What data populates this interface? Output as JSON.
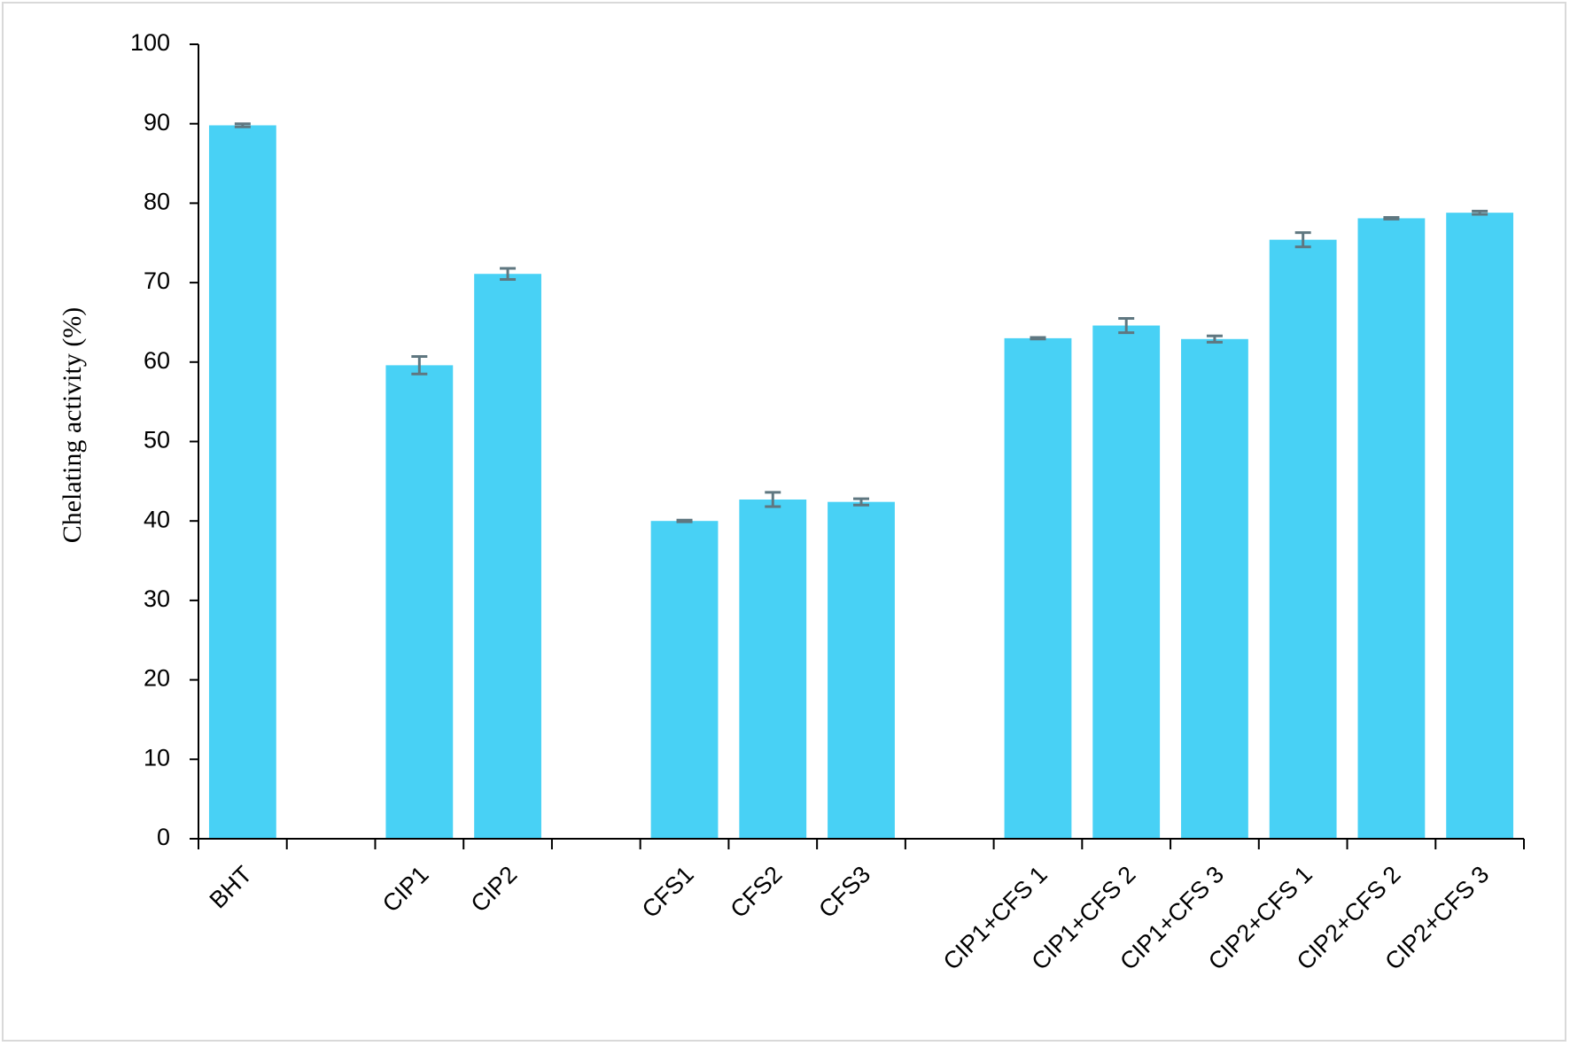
{
  "chart_data": {
    "type": "bar",
    "y_label": "Chelating activity (%)",
    "categories": [
      "BHT",
      null,
      "CIP1",
      "CIP2",
      null,
      "CFS1",
      "CFS2",
      "CFS3",
      null,
      "CIP1+CFS 1",
      "CIP1+CFS 2",
      "CIP1+CFS 3",
      "CIP2+CFS 1",
      "CIP2+CFS 2",
      "CIP2+CFS 3"
    ],
    "values": [
      89.8,
      null,
      59.6,
      71.1,
      null,
      40,
      42.7,
      42.4,
      null,
      63,
      64.6,
      62.9,
      75.4,
      78.1,
      78.8
    ],
    "errors": [
      0.2,
      null,
      1.1,
      0.7,
      null,
      0.1,
      0.9,
      0.4,
      null,
      0.1,
      0.9,
      0.4,
      0.9,
      0.1,
      0.2
    ],
    "color": "#48d1f5",
    "error_color": "#5f7780",
    "ylim": [
      0,
      100
    ],
    "yticks": [
      0,
      10,
      20,
      30,
      40,
      50,
      60,
      70,
      80,
      90,
      100
    ],
    "grid": false
  }
}
